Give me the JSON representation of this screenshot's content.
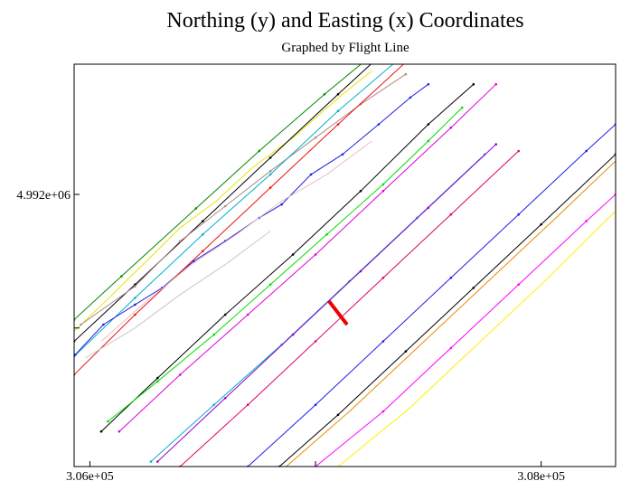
{
  "chart_data": {
    "type": "line",
    "title": "Northing (y) and Easting (x) Coordinates",
    "subtitle": "Graphed by Flight Line",
    "xlabel": "",
    "ylabel": "",
    "xlim": [
      305930,
      308330
    ],
    "ylim": [
      4991185,
      4992390
    ],
    "x_ticks": [
      {
        "value": 306000,
        "label": "3.06e+05"
      },
      {
        "value": 307000,
        "label": ""
      },
      {
        "value": 308000,
        "label": "3.08e+05"
      }
    ],
    "y_ticks": [
      {
        "value": 4992000,
        "label": "4.992e+06"
      },
      {
        "value": 4991600,
        "label": ""
      }
    ],
    "grid": false,
    "legend": "none",
    "series": [
      {
        "color": "#008800",
        "marker": true,
        "points": [
          [
            305930,
            4991625
          ],
          [
            306140,
            4991755
          ],
          [
            306470,
            4991958
          ],
          [
            306750,
            4992130
          ],
          [
            307040,
            4992300
          ],
          [
            307300,
            4992445
          ]
        ]
      },
      {
        "color": "#e6e600",
        "marker": false,
        "points": [
          [
            305930,
            4991590
          ],
          [
            306100,
            4991700
          ],
          [
            306400,
            4991900
          ],
          [
            306560,
            4991980
          ],
          [
            306720,
            4992080
          ],
          [
            306900,
            4992170
          ],
          [
            307120,
            4992300
          ],
          [
            307250,
            4992370
          ]
        ]
      },
      {
        "color": "#000000",
        "marker": true,
        "points": [
          [
            305930,
            4991560
          ],
          [
            306200,
            4991730
          ],
          [
            306500,
            4991920
          ],
          [
            306800,
            4992110
          ],
          [
            307100,
            4992300
          ],
          [
            307310,
            4992430
          ]
        ]
      },
      {
        "color": "#b08a8a",
        "marker": true,
        "points": [
          [
            305960,
            4991610
          ],
          [
            306200,
            4991725
          ],
          [
            306400,
            4991860
          ],
          [
            306600,
            4991965
          ],
          [
            306800,
            4992070
          ],
          [
            307000,
            4992170
          ],
          [
            307200,
            4992270
          ],
          [
            307400,
            4992360
          ]
        ]
      },
      {
        "color": "#00b0c8",
        "marker": true,
        "points": [
          [
            305930,
            4991515
          ],
          [
            306200,
            4991690
          ],
          [
            306500,
            4991880
          ],
          [
            306800,
            4992060
          ],
          [
            307100,
            4992250
          ],
          [
            307430,
            4992440
          ]
        ]
      },
      {
        "color": "#1e1ee6",
        "marker": true,
        "points": [
          [
            305935,
            4991520
          ],
          [
            306060,
            4991610
          ],
          [
            306200,
            4991670
          ],
          [
            306320,
            4991720
          ],
          [
            306460,
            4991800
          ],
          [
            306600,
            4991860
          ],
          [
            306750,
            4991930
          ],
          [
            306850,
            4991970
          ],
          [
            306980,
            4992060
          ],
          [
            307120,
            4992120
          ],
          [
            307280,
            4992210
          ],
          [
            307420,
            4992290
          ],
          [
            307500,
            4992330
          ]
        ]
      },
      {
        "color": "#ee1111",
        "marker": true,
        "points": [
          [
            305930,
            4991460
          ],
          [
            306200,
            4991640
          ],
          [
            306500,
            4991830
          ],
          [
            306800,
            4992020
          ],
          [
            307100,
            4992210
          ],
          [
            307430,
            4992415
          ]
        ]
      },
      {
        "color": "#e8c0c0",
        "marker": false,
        "points": [
          [
            306050,
            4991560
          ],
          [
            306250,
            4991680
          ],
          [
            306450,
            4991790
          ],
          [
            306650,
            4991880
          ],
          [
            306850,
            4991980
          ],
          [
            307050,
            4992060
          ],
          [
            307250,
            4992160
          ]
        ]
      },
      {
        "color": "#c8c8c8",
        "marker": false,
        "points": [
          [
            305980,
            4991510
          ],
          [
            306200,
            4991600
          ],
          [
            306400,
            4991700
          ],
          [
            306600,
            4991790
          ],
          [
            306800,
            4991890
          ]
        ]
      },
      {
        "color": "#000000",
        "marker": true,
        "points": [
          [
            306050,
            4991290
          ],
          [
            306300,
            4991450
          ],
          [
            306600,
            4991640
          ],
          [
            306900,
            4991820
          ],
          [
            307200,
            4992010
          ],
          [
            307500,
            4992210
          ],
          [
            307700,
            4992330
          ]
        ]
      },
      {
        "color": "#00dd00",
        "marker": true,
        "points": [
          [
            306080,
            4991320
          ],
          [
            306300,
            4991440
          ],
          [
            306550,
            4991580
          ],
          [
            306800,
            4991730
          ],
          [
            307050,
            4991880
          ],
          [
            307300,
            4992030
          ],
          [
            307500,
            4992160
          ],
          [
            307650,
            4992260
          ]
        ]
      },
      {
        "color": "#dd00dd",
        "marker": true,
        "points": [
          [
            306130,
            4991290
          ],
          [
            306400,
            4991460
          ],
          [
            306700,
            4991640
          ],
          [
            307000,
            4991820
          ],
          [
            307300,
            4992010
          ],
          [
            307600,
            4992200
          ],
          [
            307800,
            4992330
          ]
        ]
      },
      {
        "color": "#00b0c8",
        "marker": true,
        "points": [
          [
            306270,
            4991200
          ],
          [
            306550,
            4991370
          ],
          [
            306850,
            4991550
          ],
          [
            307150,
            4991740
          ],
          [
            307450,
            4991930
          ],
          [
            307750,
            4992120
          ]
        ]
      },
      {
        "color": "#9900cc",
        "marker": true,
        "points": [
          [
            306300,
            4991200
          ],
          [
            306600,
            4991390
          ],
          [
            306900,
            4991580
          ],
          [
            307200,
            4991770
          ],
          [
            307500,
            4991960
          ],
          [
            307800,
            4992150
          ]
        ]
      },
      {
        "color": "#dd0066",
        "marker": true,
        "points": [
          [
            306400,
            4991185
          ],
          [
            306700,
            4991370
          ],
          [
            307000,
            4991560
          ],
          [
            307300,
            4991750
          ],
          [
            307600,
            4991940
          ],
          [
            307900,
            4992130
          ]
        ]
      },
      {
        "color": "#1e1ee6",
        "marker": true,
        "points": [
          [
            306700,
            4991185
          ],
          [
            307000,
            4991370
          ],
          [
            307300,
            4991560
          ],
          [
            307600,
            4991750
          ],
          [
            307900,
            4991940
          ],
          [
            308200,
            4992130
          ],
          [
            308330,
            4992210
          ]
        ]
      },
      {
        "color": "#000000",
        "marker": true,
        "points": [
          [
            306840,
            4991185
          ],
          [
            307100,
            4991340
          ],
          [
            307400,
            4991530
          ],
          [
            307700,
            4991720
          ],
          [
            308000,
            4991910
          ],
          [
            308330,
            4992120
          ]
        ]
      },
      {
        "color": "#ee8800",
        "marker": false,
        "points": [
          [
            306870,
            4991185
          ],
          [
            307150,
            4991350
          ],
          [
            307450,
            4991540
          ],
          [
            307750,
            4991730
          ],
          [
            308050,
            4991920
          ],
          [
            308330,
            4992100
          ]
        ]
      },
      {
        "color": "#ff00ff",
        "marker": true,
        "points": [
          [
            307000,
            4991185
          ],
          [
            307300,
            4991350
          ],
          [
            307600,
            4991540
          ],
          [
            307900,
            4991730
          ],
          [
            308200,
            4991920
          ],
          [
            308330,
            4992000
          ]
        ]
      },
      {
        "color": "#ffee00",
        "marker": false,
        "points": [
          [
            307100,
            4991185
          ],
          [
            307400,
            4991350
          ],
          [
            307700,
            4991540
          ],
          [
            308000,
            4991730
          ],
          [
            308330,
            4991950
          ]
        ]
      }
    ],
    "annotations": [
      {
        "type": "segment",
        "color": "#ee0000",
        "points": [
          [
            307060,
            4991680
          ],
          [
            307140,
            4991610
          ]
        ]
      }
    ]
  }
}
